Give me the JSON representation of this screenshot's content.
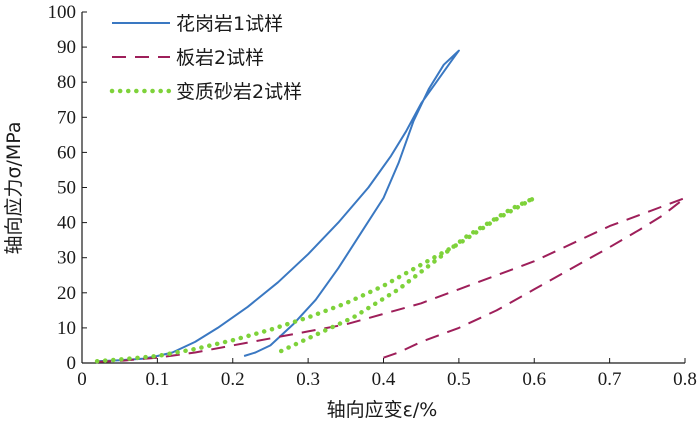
{
  "chart_data": {
    "type": "line",
    "xlabel": "轴向应变ε/%",
    "ylabel": "轴向应力σ/MPa",
    "xlim": [
      0,
      0.8
    ],
    "ylim": [
      0,
      100
    ],
    "x_ticks": [
      "0",
      "0.1",
      "0.2",
      "0.3",
      "0.4",
      "0.5",
      "0.6",
      "0.7",
      "0.8"
    ],
    "y_ticks": [
      "0",
      "10",
      "20",
      "30",
      "40",
      "50",
      "60",
      "70",
      "80",
      "90",
      "100"
    ],
    "grid": false,
    "legend_position": "top-left",
    "series": [
      {
        "name": "花岗岩1试样",
        "color": "#3a78c2",
        "style": "solid",
        "points": [
          [
            0.02,
            0.5
          ],
          [
            0.05,
            0.8
          ],
          [
            0.08,
            1.2
          ],
          [
            0.1,
            2
          ],
          [
            0.12,
            3
          ],
          [
            0.15,
            6
          ],
          [
            0.18,
            10
          ],
          [
            0.22,
            16
          ],
          [
            0.26,
            23
          ],
          [
            0.3,
            31
          ],
          [
            0.34,
            40
          ],
          [
            0.38,
            50
          ],
          [
            0.41,
            59
          ],
          [
            0.43,
            66
          ],
          [
            0.45,
            74
          ],
          [
            0.47,
            80
          ],
          [
            0.49,
            86
          ],
          [
            0.5,
            89
          ],
          [
            0.48,
            85
          ],
          [
            0.46,
            78
          ],
          [
            0.44,
            69
          ],
          [
            0.42,
            57
          ],
          [
            0.4,
            47
          ],
          [
            0.37,
            37
          ],
          [
            0.34,
            27
          ],
          [
            0.31,
            18
          ],
          [
            0.28,
            11
          ],
          [
            0.25,
            5
          ],
          [
            0.23,
            3
          ],
          [
            0.215,
            2
          ]
        ]
      },
      {
        "name": "板岩2试样",
        "color": "#9e1f5a",
        "style": "dashed",
        "points": [
          [
            0.02,
            0.3
          ],
          [
            0.05,
            0.6
          ],
          [
            0.1,
            1.5
          ],
          [
            0.15,
            3
          ],
          [
            0.2,
            5
          ],
          [
            0.25,
            7
          ],
          [
            0.3,
            9
          ],
          [
            0.35,
            11
          ],
          [
            0.4,
            14
          ],
          [
            0.45,
            17
          ],
          [
            0.5,
            21
          ],
          [
            0.55,
            25
          ],
          [
            0.6,
            29
          ],
          [
            0.65,
            34
          ],
          [
            0.7,
            39
          ],
          [
            0.75,
            43
          ],
          [
            0.8,
            47
          ],
          [
            0.77,
            42
          ],
          [
            0.74,
            38
          ],
          [
            0.7,
            33
          ],
          [
            0.65,
            27
          ],
          [
            0.6,
            21
          ],
          [
            0.55,
            15
          ],
          [
            0.5,
            10
          ],
          [
            0.45,
            6
          ],
          [
            0.42,
            3
          ],
          [
            0.4,
            1.5
          ]
        ]
      },
      {
        "name": "变质砂岩2试样",
        "color": "#7ed23a",
        "style": "dotted",
        "points": [
          [
            0.02,
            0.5
          ],
          [
            0.05,
            1
          ],
          [
            0.1,
            2
          ],
          [
            0.15,
            4
          ],
          [
            0.2,
            6.5
          ],
          [
            0.25,
            9.5
          ],
          [
            0.3,
            13
          ],
          [
            0.35,
            17
          ],
          [
            0.4,
            22
          ],
          [
            0.45,
            28
          ],
          [
            0.5,
            34
          ],
          [
            0.55,
            41
          ],
          [
            0.6,
            47
          ],
          [
            0.57,
            44
          ],
          [
            0.54,
            40
          ],
          [
            0.51,
            36
          ],
          [
            0.48,
            31
          ],
          [
            0.45,
            26
          ],
          [
            0.42,
            21
          ],
          [
            0.39,
            17
          ],
          [
            0.36,
            13
          ],
          [
            0.33,
            10
          ],
          [
            0.3,
            7
          ],
          [
            0.28,
            5
          ],
          [
            0.26,
            3
          ],
          [
            0.255,
            2.5
          ]
        ]
      }
    ]
  }
}
